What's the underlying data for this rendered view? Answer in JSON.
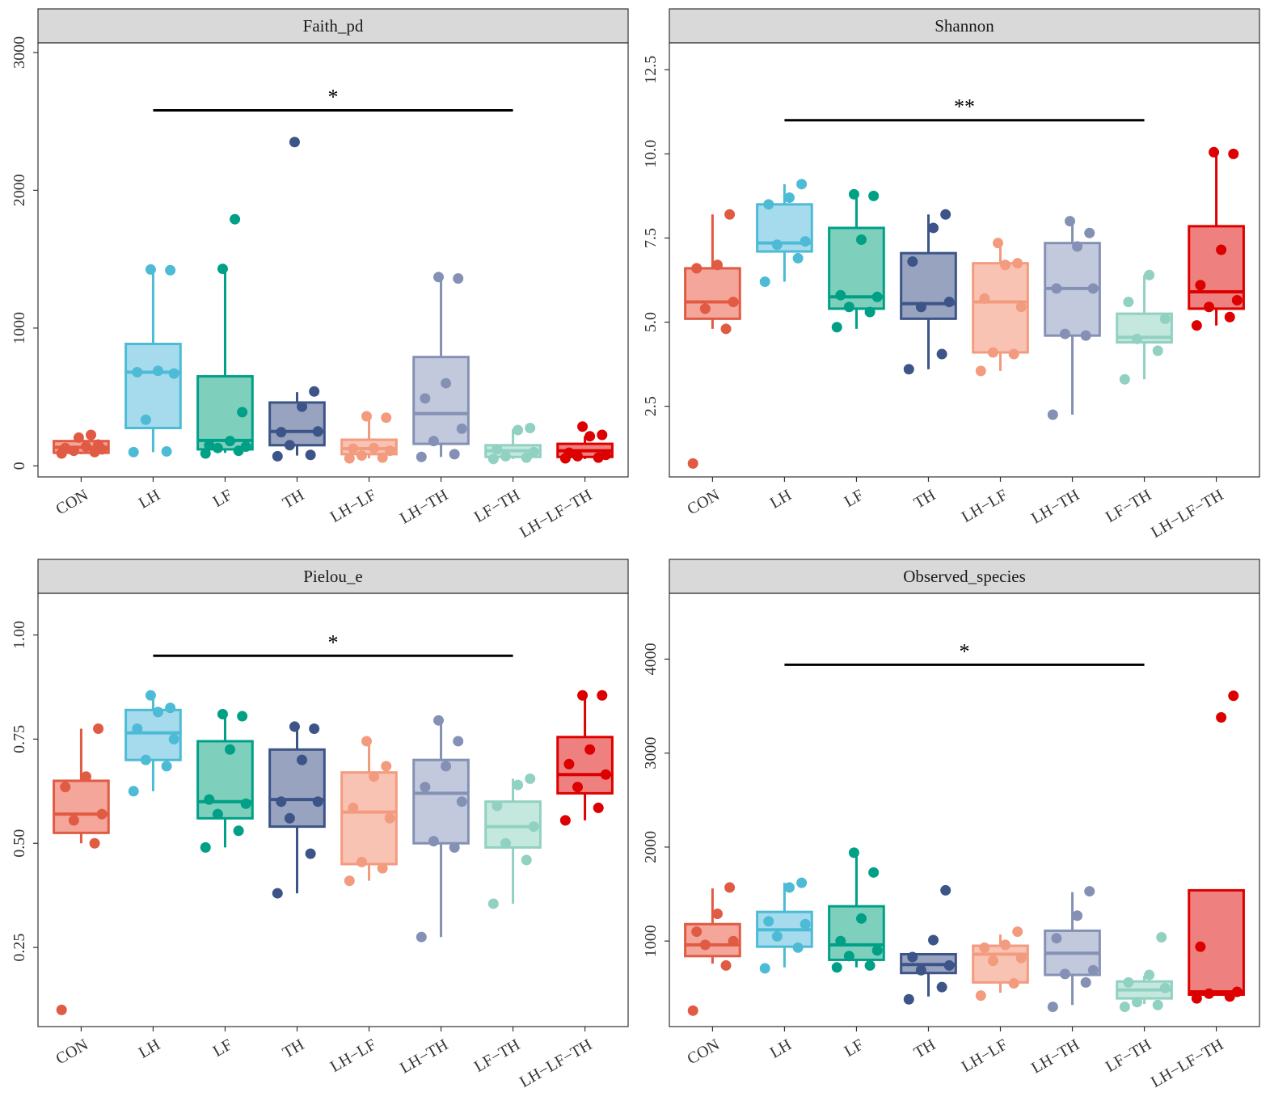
{
  "chart_data": [
    {
      "type": "boxplot",
      "title": "Faith_pd",
      "categories": [
        "CON",
        "LH",
        "LF",
        "TH",
        "LH−LF",
        "LH−TH",
        "LF−TH",
        "LH−LF−TH"
      ],
      "yticks": [
        0,
        1000,
        2000,
        3000
      ],
      "ylim": [
        -80,
        3070
      ],
      "significance": {
        "from": "LH",
        "to": "LF−TH",
        "y": 2580,
        "label": "*"
      },
      "groups": [
        {
          "q1": 95,
          "median": 135,
          "q3": 180,
          "whisker_low": 85,
          "whisker_high": 220,
          "points": [
            90,
            100,
            110,
            120,
            130,
            140,
            155,
            205,
            225
          ]
        },
        {
          "q1": 275,
          "median": 680,
          "q3": 885,
          "whisker_low": 100,
          "whisker_high": 1410,
          "points": [
            100,
            105,
            335,
            670,
            680,
            690,
            1420,
            1425
          ]
        },
        {
          "q1": 120,
          "median": 185,
          "q3": 650,
          "whisker_low": 95,
          "whisker_high": 1420,
          "points": [
            90,
            110,
            130,
            140,
            150,
            180,
            390,
            1430,
            1790
          ]
        },
        {
          "q1": 150,
          "median": 250,
          "q3": 460,
          "whisker_low": 75,
          "whisker_high": 535,
          "points": [
            70,
            80,
            150,
            250,
            245,
            430,
            540,
            2350
          ]
        },
        {
          "q1": 85,
          "median": 125,
          "q3": 190,
          "whisker_low": 55,
          "whisker_high": 360,
          "points": [
            55,
            60,
            75,
            110,
            125,
            130,
            350,
            360
          ]
        },
        {
          "q1": 160,
          "median": 380,
          "q3": 790,
          "whisker_low": 65,
          "whisker_high": 1360,
          "points": [
            65,
            85,
            180,
            270,
            490,
            600,
            1360,
            1370
          ]
        },
        {
          "q1": 65,
          "median": 110,
          "q3": 150,
          "whisker_low": 50,
          "whisker_high": 265,
          "points": [
            50,
            60,
            70,
            100,
            120,
            260,
            275
          ]
        },
        {
          "q1": 65,
          "median": 110,
          "q3": 160,
          "whisker_low": 50,
          "whisker_high": 215,
          "points": [
            55,
            60,
            70,
            80,
            95,
            215,
            225,
            285
          ]
        }
      ]
    },
    {
      "type": "boxplot",
      "title": "Shannon",
      "categories": [
        "CON",
        "LH",
        "LF",
        "TH",
        "LH−LF",
        "LH−TH",
        "LF−TH",
        "LH−LF−TH"
      ],
      "yticks": [
        2.5,
        5.0,
        7.5,
        10.0,
        12.5
      ],
      "yticklabels": [
        "2.5",
        "5.0",
        "7.5",
        "10.0",
        "12.5"
      ],
      "ylim": [
        0.4,
        13.3
      ],
      "significance": {
        "from": "LH",
        "to": "LF−TH",
        "y": 11.0,
        "label": "**"
      },
      "groups": [
        {
          "q1": 5.1,
          "median": 5.6,
          "q3": 6.6,
          "whisker_low": 4.8,
          "whisker_high": 8.2,
          "points": [
            0.8,
            4.8,
            5.4,
            5.6,
            6.6,
            6.7,
            8.2
          ]
        },
        {
          "q1": 7.1,
          "median": 7.35,
          "q3": 8.5,
          "whisker_low": 6.2,
          "whisker_high": 9.1,
          "points": [
            6.2,
            6.9,
            7.3,
            7.4,
            8.5,
            8.7,
            9.1
          ]
        },
        {
          "q1": 5.4,
          "median": 5.75,
          "q3": 7.8,
          "whisker_low": 4.8,
          "whisker_high": 8.75,
          "points": [
            4.85,
            5.3,
            5.45,
            5.75,
            5.8,
            7.45,
            8.75,
            8.8
          ]
        },
        {
          "q1": 5.1,
          "median": 5.55,
          "q3": 7.05,
          "whisker_low": 3.6,
          "whisker_high": 8.2,
          "points": [
            3.6,
            4.05,
            5.45,
            5.6,
            6.8,
            7.8,
            8.2
          ]
        },
        {
          "q1": 4.1,
          "median": 5.6,
          "q3": 6.75,
          "whisker_low": 3.55,
          "whisker_high": 7.35,
          "points": [
            3.55,
            4.05,
            4.1,
            5.45,
            5.7,
            6.7,
            6.75,
            7.35
          ]
        },
        {
          "q1": 4.6,
          "median": 6.0,
          "q3": 7.35,
          "whisker_low": 2.25,
          "whisker_high": 8.0,
          "points": [
            2.25,
            4.6,
            4.65,
            6.0,
            6.0,
            7.25,
            7.65,
            8.0
          ]
        },
        {
          "q1": 4.4,
          "median": 4.55,
          "q3": 5.25,
          "whisker_low": 3.3,
          "whisker_high": 6.4,
          "points": [
            3.3,
            4.15,
            4.5,
            5.1,
            5.6,
            6.4
          ]
        },
        {
          "q1": 5.4,
          "median": 5.9,
          "q3": 7.85,
          "whisker_low": 4.9,
          "whisker_high": 10.1,
          "points": [
            4.9,
            5.15,
            5.45,
            5.65,
            6.1,
            7.15,
            10.0,
            10.05
          ]
        }
      ]
    },
    {
      "type": "boxplot",
      "title": "Pielou_e",
      "categories": [
        "CON",
        "LH",
        "LF",
        "TH",
        "LH−LF",
        "LH−TH",
        "LF−TH",
        "LH−LF−TH"
      ],
      "yticks": [
        0.25,
        0.5,
        0.75,
        1.0
      ],
      "yticklabels": [
        "0.25",
        "0.50",
        "0.75",
        "1.00"
      ],
      "ylim": [
        0.06,
        1.1
      ],
      "significance": {
        "from": "LH",
        "to": "LF−TH",
        "y": 0.95,
        "label": "*"
      },
      "groups": [
        {
          "q1": 0.525,
          "median": 0.57,
          "q3": 0.65,
          "whisker_low": 0.5,
          "whisker_high": 0.775,
          "points": [
            0.1,
            0.5,
            0.555,
            0.57,
            0.635,
            0.66,
            0.775
          ]
        },
        {
          "q1": 0.7,
          "median": 0.765,
          "q3": 0.82,
          "whisker_low": 0.625,
          "whisker_high": 0.855,
          "points": [
            0.625,
            0.685,
            0.7,
            0.75,
            0.775,
            0.815,
            0.825,
            0.855
          ]
        },
        {
          "q1": 0.56,
          "median": 0.6,
          "q3": 0.745,
          "whisker_low": 0.49,
          "whisker_high": 0.81,
          "points": [
            0.49,
            0.53,
            0.57,
            0.595,
            0.605,
            0.725,
            0.805,
            0.81
          ]
        },
        {
          "q1": 0.54,
          "median": 0.605,
          "q3": 0.725,
          "whisker_low": 0.38,
          "whisker_high": 0.78,
          "points": [
            0.38,
            0.475,
            0.56,
            0.6,
            0.6,
            0.7,
            0.775,
            0.78
          ]
        },
        {
          "q1": 0.45,
          "median": 0.575,
          "q3": 0.67,
          "whisker_low": 0.41,
          "whisker_high": 0.745,
          "points": [
            0.41,
            0.44,
            0.455,
            0.56,
            0.585,
            0.66,
            0.685,
            0.745
          ]
        },
        {
          "q1": 0.5,
          "median": 0.62,
          "q3": 0.7,
          "whisker_low": 0.275,
          "whisker_high": 0.795,
          "points": [
            0.275,
            0.49,
            0.505,
            0.6,
            0.635,
            0.685,
            0.745,
            0.795
          ]
        },
        {
          "q1": 0.49,
          "median": 0.54,
          "q3": 0.6,
          "whisker_low": 0.355,
          "whisker_high": 0.655,
          "points": [
            0.355,
            0.46,
            0.5,
            0.54,
            0.59,
            0.64,
            0.655
          ]
        },
        {
          "q1": 0.62,
          "median": 0.665,
          "q3": 0.755,
          "whisker_low": 0.555,
          "whisker_high": 0.855,
          "points": [
            0.555,
            0.585,
            0.635,
            0.665,
            0.69,
            0.725,
            0.855,
            0.855
          ]
        }
      ]
    },
    {
      "type": "boxplot",
      "title": "Observed_species",
      "categories": [
        "CON",
        "LH",
        "LF",
        "TH",
        "LH−LF",
        "LH−TH",
        "LF−TH",
        "LH−LF−TH"
      ],
      "yticks": [
        1000,
        2000,
        3000,
        4000
      ],
      "ylim": [
        90,
        4700
      ],
      "significance": {
        "from": "LH",
        "to": "LF−TH",
        "y": 3940,
        "label": "*"
      },
      "groups": [
        {
          "q1": 840,
          "median": 960,
          "q3": 1180,
          "whisker_low": 760,
          "whisker_high": 1560,
          "points": [
            260,
            740,
            960,
            1000,
            1100,
            1290,
            1570
          ]
        },
        {
          "q1": 940,
          "median": 1120,
          "q3": 1310,
          "whisker_low": 720,
          "whisker_high": 1620,
          "points": [
            710,
            930,
            1050,
            1180,
            1210,
            1570,
            1620
          ]
        },
        {
          "q1": 800,
          "median": 960,
          "q3": 1370,
          "whisker_low": 720,
          "whisker_high": 1920,
          "points": [
            720,
            740,
            840,
            900,
            1000,
            1240,
            1730,
            1940
          ]
        },
        {
          "q1": 660,
          "median": 750,
          "q3": 860,
          "whisker_low": 410,
          "whisker_high": 860,
          "points": [
            380,
            510,
            690,
            740,
            830,
            1010,
            1540
          ]
        },
        {
          "q1": 560,
          "median": 860,
          "q3": 950,
          "whisker_low": 450,
          "whisker_high": 1070,
          "points": [
            420,
            550,
            790,
            820,
            930,
            960,
            1100
          ]
        },
        {
          "q1": 640,
          "median": 870,
          "q3": 1110,
          "whisker_low": 320,
          "whisker_high": 1520,
          "points": [
            300,
            560,
            650,
            690,
            1030,
            1270,
            1530
          ]
        },
        {
          "q1": 390,
          "median": 480,
          "q3": 570,
          "whisker_low": 330,
          "whisker_high": 630,
          "points": [
            300,
            320,
            350,
            500,
            560,
            640,
            1040
          ]
        },
        {
          "q1": 430,
          "median": 460,
          "q3": 1540,
          "whisker_low": 430,
          "whisker_high": 1540,
          "points": [
            390,
            410,
            440,
            460,
            940,
            3380,
            3610
          ]
        }
      ]
    }
  ],
  "colors": {
    "fills": [
      "#f4a69a",
      "#a5dbed",
      "#7fcfbd",
      "#97a3bf",
      "#f9c3b4",
      "#c3c9dd",
      "#c5e8de",
      "#ef8080"
    ],
    "strokes": [
      "#e15a43",
      "#4dbbd5",
      "#00a087",
      "#3c5488",
      "#f39b7f",
      "#8491b4",
      "#91d1c2",
      "#dc0000"
    ],
    "strip_fill": "#d9d9d9",
    "axis": "#333333"
  }
}
